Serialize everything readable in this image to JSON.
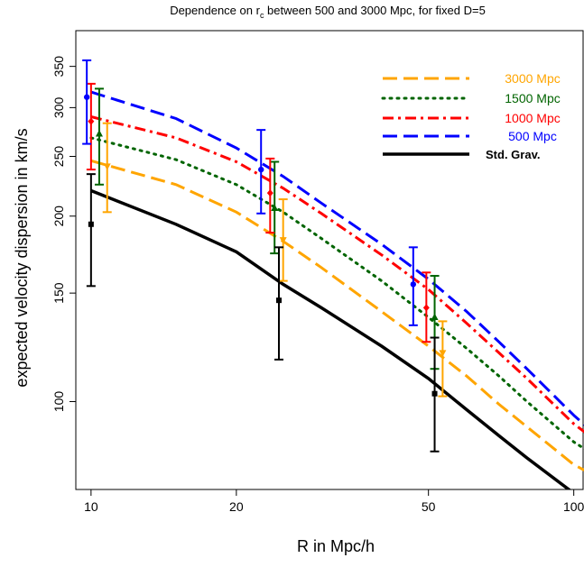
{
  "chart_data": {
    "type": "line",
    "title_main": "Dependence on r",
    "title_sub": "c",
    "title_rest": " between 500 and 3000 Mpc, for fixed D=5",
    "xlabel": "R in Mpc/h",
    "ylabel": "expected velocity dispersion in km/s",
    "x_scale": "log",
    "y_scale": "log",
    "xlim": [
      9.3,
      105
    ],
    "ylim": [
      72,
      400
    ],
    "x_ticks": [
      10,
      20,
      50,
      100
    ],
    "x_tick_labels": [
      "10",
      "20",
      "50",
      "100"
    ],
    "y_ticks": [
      100,
      150,
      200,
      250,
      300,
      350
    ],
    "y_tick_labels": [
      "100",
      "150",
      "200",
      "250",
      "300",
      "350"
    ],
    "grid": false,
    "legend_position": "top-right",
    "series": [
      {
        "name": "3000  Mpc",
        "color": "#FFA500",
        "dash": "long-dash",
        "x": [
          10,
          15,
          20,
          25,
          30,
          40,
          50,
          60,
          70,
          80,
          100,
          110
        ],
        "y": [
          246,
          225,
          203,
          182,
          165,
          140,
          123,
          110,
          99,
          91,
          79,
          76
        ],
        "points": {
          "x": 10.8,
          "y": 241
        },
        "markers": [
          {
            "x": 10.8,
            "y": 241,
            "lo": 203,
            "hi": 283
          },
          {
            "x": 25.0,
            "y": 183,
            "lo": 157,
            "hi": 213
          },
          {
            "x": 53.5,
            "y": 120,
            "lo": 102,
            "hi": 135
          }
        ],
        "marker_shape": "triangle-down"
      },
      {
        "name": "1500  Mpc",
        "color": "#006400",
        "dash": "dotted",
        "x": [
          10,
          15,
          20,
          25,
          30,
          40,
          50,
          60,
          70,
          80,
          100,
          110
        ],
        "y": [
          268,
          247,
          225,
          203,
          184,
          157,
          137,
          122,
          110,
          100,
          86,
          82
        ],
        "markers": [
          {
            "x": 10.4,
            "y": 272,
            "lo": 225,
            "hi": 322
          },
          {
            "x": 24.0,
            "y": 206,
            "lo": 174,
            "hi": 245
          },
          {
            "x": 51.5,
            "y": 137,
            "lo": 113,
            "hi": 160
          }
        ],
        "marker_shape": "triangle-up"
      },
      {
        "name": "1000  Mpc",
        "color": "#FF0000",
        "dash": "dash-dot",
        "x": [
          10,
          15,
          20,
          25,
          30,
          40,
          50,
          60,
          70,
          80,
          100,
          110
        ],
        "y": [
          290,
          268,
          245,
          222,
          202,
          173,
          152,
          134,
          120,
          109,
          92,
          87
        ],
        "markers": [
          {
            "x": 10.0,
            "y": 285,
            "lo": 238,
            "hi": 328
          },
          {
            "x": 23.5,
            "y": 218,
            "lo": 188,
            "hi": 248
          },
          {
            "x": 49.5,
            "y": 142,
            "lo": 125,
            "hi": 162
          }
        ],
        "marker_shape": "diamond"
      },
      {
        "name": "500 Mpc",
        "color": "#0000FF",
        "dash": "long-dash",
        "x": [
          10,
          15,
          20,
          25,
          30,
          40,
          50,
          60,
          70,
          80,
          100,
          110
        ],
        "y": [
          318,
          288,
          258,
          232,
          210,
          180,
          158,
          140,
          125,
          113,
          95,
          89
        ],
        "markers": [
          {
            "x": 9.8,
            "y": 312,
            "lo": 262,
            "hi": 358
          },
          {
            "x": 22.5,
            "y": 238,
            "lo": 202,
            "hi": 276
          },
          {
            "x": 46.5,
            "y": 155,
            "lo": 133,
            "hi": 178
          }
        ],
        "marker_shape": "circle"
      },
      {
        "name": "Std. Grav.",
        "color": "#000000",
        "dash": "solid",
        "x": [
          10,
          15,
          20,
          25,
          30,
          40,
          50,
          60,
          70,
          80,
          100,
          110
        ],
        "y": [
          220,
          194,
          175,
          155,
          142,
          123,
          109,
          97,
          88,
          81,
          71,
          68
        ],
        "markers": [
          {
            "x": 10.0,
            "y": 194,
            "lo": 154,
            "hi": 234
          },
          {
            "x": 24.5,
            "y": 146,
            "lo": 117,
            "hi": 178
          },
          {
            "x": 51.5,
            "y": 103,
            "lo": 83,
            "hi": 127
          }
        ],
        "marker_shape": "square"
      }
    ]
  }
}
